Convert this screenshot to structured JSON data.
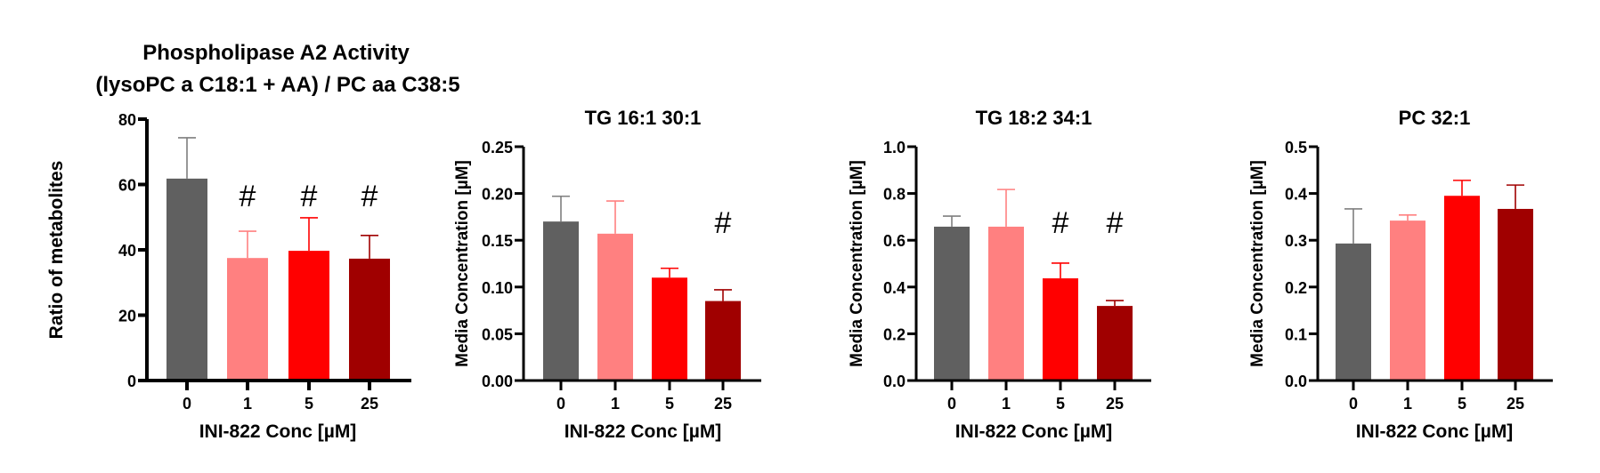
{
  "figure": {
    "bar_colors": [
      "#606060",
      "#ff8080",
      "#ff0000",
      "#a00000"
    ],
    "error_colors": [
      "#7f7f7f",
      "#ff8080",
      "#ff0000",
      "#a00000"
    ],
    "axis_color": "#000000",
    "significance_symbol": "#"
  },
  "chart_data": [
    {
      "type": "bar",
      "title": "Phospholipase A2 Activity",
      "subtitle": "(lysoPC a C18:1 + AA) / PC aa C38:5",
      "xlabel": "INI-822 Conc [µM]",
      "ylabel": "Ratio of metabolites",
      "categories": [
        "0",
        "1",
        "5",
        "25"
      ],
      "values": [
        61.8,
        37.5,
        39.7,
        37.3
      ],
      "error_upper": [
        74.3,
        45.7,
        49.8,
        44.4
      ],
      "significant": [
        false,
        true,
        true,
        true
      ],
      "ylim": [
        0,
        80
      ],
      "yticks": [
        0,
        20,
        40,
        60,
        80
      ],
      "ytick_labels": [
        "0",
        "20",
        "40",
        "60",
        "80"
      ],
      "grid": false,
      "legend": "none"
    },
    {
      "type": "bar",
      "title": "TG 16:1 30:1",
      "xlabel": "INI-822 Conc [µM]",
      "ylabel": "Media Concentration [µM]",
      "categories": [
        "0",
        "1",
        "5",
        "25"
      ],
      "values": [
        0.17,
        0.157,
        0.11,
        0.085
      ],
      "error_upper": [
        0.197,
        0.192,
        0.12,
        0.097
      ],
      "significant": [
        false,
        false,
        false,
        true
      ],
      "ylim": [
        0,
        0.25
      ],
      "yticks": [
        0,
        0.05,
        0.1,
        0.15,
        0.2,
        0.25
      ],
      "ytick_labels": [
        "0.00",
        "0.05",
        "0.10",
        "0.15",
        "0.20",
        "0.25"
      ],
      "grid": false,
      "legend": "none"
    },
    {
      "type": "bar",
      "title": "TG 18:2 34:1",
      "xlabel": "INI-822 Conc [µM]",
      "ylabel": "Media Concentration [µM]",
      "categories": [
        "0",
        "1",
        "5",
        "25"
      ],
      "values": [
        0.658,
        0.658,
        0.437,
        0.319
      ],
      "error_upper": [
        0.703,
        0.817,
        0.502,
        0.342
      ],
      "significant": [
        false,
        false,
        true,
        true
      ],
      "ylim": [
        0,
        1.0
      ],
      "yticks": [
        0,
        0.2,
        0.4,
        0.6,
        0.8,
        1.0
      ],
      "ytick_labels": [
        "0.0",
        "0.2",
        "0.4",
        "0.6",
        "0.8",
        "1.0"
      ],
      "grid": false,
      "legend": "none"
    },
    {
      "type": "bar",
      "title": "PC 32:1",
      "xlabel": "INI-822 Conc [µM]",
      "ylabel": "Media Concentration [µM]",
      "categories": [
        "0",
        "1",
        "5",
        "25"
      ],
      "values": [
        0.293,
        0.342,
        0.395,
        0.367
      ],
      "error_upper": [
        0.367,
        0.354,
        0.428,
        0.418
      ],
      "significant": [
        false,
        false,
        false,
        false
      ],
      "ylim": [
        0,
        0.5
      ],
      "yticks": [
        0,
        0.1,
        0.2,
        0.3,
        0.4,
        0.5
      ],
      "ytick_labels": [
        "0.0",
        "0.1",
        "0.2",
        "0.3",
        "0.4",
        "0.5"
      ],
      "grid": false,
      "legend": "none"
    }
  ]
}
